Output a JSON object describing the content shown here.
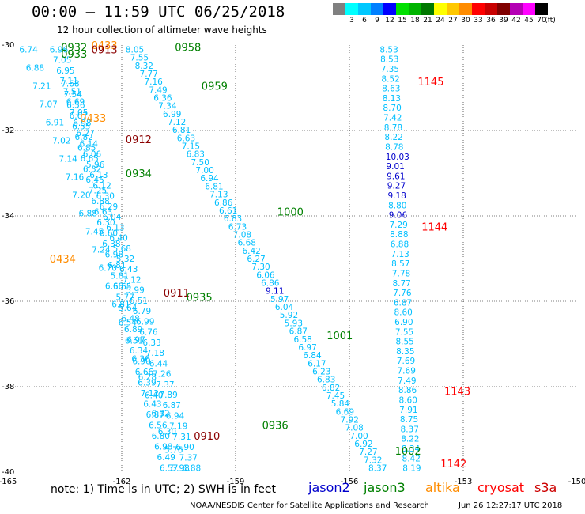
{
  "header": {
    "title": "00:00 – 11:59 UTC 06/25/2018",
    "subtitle": "12 hour collection of altimeter wave heights"
  },
  "scale": {
    "unit_label": "(ft)",
    "bins": [
      {
        "label": "",
        "color": "#808080"
      },
      {
        "label": "3",
        "color": "#00ffff"
      },
      {
        "label": "6",
        "color": "#00c8ff"
      },
      {
        "label": "9",
        "color": "#0080ff"
      },
      {
        "label": "12",
        "color": "#0000ff"
      },
      {
        "label": "15",
        "color": "#00e000"
      },
      {
        "label": "18",
        "color": "#00b400"
      },
      {
        "label": "21",
        "color": "#007800"
      },
      {
        "label": "24",
        "color": "#ffff00"
      },
      {
        "label": "27",
        "color": "#ffc800"
      },
      {
        "label": "30",
        "color": "#ff8c00"
      },
      {
        "label": "33",
        "color": "#ff0000"
      },
      {
        "label": "36",
        "color": "#c80000"
      },
      {
        "label": "39",
        "color": "#800000"
      },
      {
        "label": "42",
        "color": "#b400b4"
      },
      {
        "label": "45",
        "color": "#ff00ff"
      },
      {
        "label": "70",
        "color": "#000000"
      }
    ]
  },
  "footer": {
    "note": "note:  1) Time is in UTC;  2) SWH is in feet",
    "satellites": [
      {
        "name": "jason2",
        "color": "#0000cc"
      },
      {
        "name": "jason3",
        "color": "#008000"
      },
      {
        "name": "altika",
        "color": "#ff8c00"
      },
      {
        "name": "cryosat",
        "color": "#ff0000"
      },
      {
        "name": "s3a",
        "color": "#cc0000"
      }
    ],
    "credit": "NOAA/NESDIS Center for Satellite Applications and Research",
    "timestamp": "Jun 26 12:27:17 UTC 2018"
  },
  "chart_data": {
    "type": "scatter",
    "xlim": [
      -165,
      -150
    ],
    "ylim": [
      -40,
      -30
    ],
    "x_ticks": [
      "-165",
      "-162",
      "-159",
      "-156",
      "-153",
      "-150"
    ],
    "y_ticks": [
      "-30",
      "-32",
      "-34",
      "-36",
      "-38",
      "-40"
    ],
    "grid": true,
    "colors": {
      "cyan": "#00bfff",
      "blue": "#0000cc",
      "green": "#008000",
      "orange": "#ff8c00",
      "red": "#ff0000",
      "darkred": "#8b0000"
    },
    "tracks": [
      {
        "name": "track-a",
        "color": "cyan",
        "lon_start": -164.7,
        "lat_start": -30.1,
        "lon_end": -160.7,
        "lat_end": -39.9,
        "values": [
          "6.74",
          "6.88",
          "7.21",
          "7.07",
          "6.91",
          "7.02",
          "7.14",
          "7.16",
          "7.20",
          "6.88",
          "7.45",
          "7.24",
          "6.70",
          "6.68",
          "6.81",
          "6.54",
          "6.51",
          "6.36",
          "6.28",
          "6.40",
          "6.32",
          "6.30",
          "5.76",
          "5.98"
        ]
      },
      {
        "name": "track-b",
        "color": "cyan",
        "lon_start": -163.9,
        "lat_start": -30.1,
        "lon_end": -160.4,
        "lat_end": -39.9,
        "values": [
          "6.96",
          "7.05",
          "6.95",
          "7.11",
          "7.51",
          "6.69",
          "7.05",
          "6.98",
          "6.27",
          "6.14",
          "6.06",
          "5.96",
          "6.13",
          "6.12",
          "6.30",
          "6.29",
          "6.04",
          "6.13",
          "6.40",
          "5.68",
          "5.32",
          "6.43",
          "7.12",
          "5.99",
          "6.51",
          "6.79",
          "6.99",
          "6.76",
          "6.33",
          "7.18",
          "6.44",
          "7.26",
          "7.37",
          "7.89",
          "6.87",
          "6.94",
          "7.19",
          "7.31",
          "6.90",
          "7.37",
          "6.88"
        ]
      },
      {
        "name": "track-c",
        "color": "cyan",
        "lon_start": -163.6,
        "lat_start": -30.9,
        "lon_end": -161.0,
        "lat_end": -39.9,
        "values": [
          "7.68",
          "7.54",
          "6.56",
          "6.67",
          "6.55",
          "6.82",
          "6.85",
          "6.65",
          "6.32",
          "6.45",
          "7.25",
          "6.88",
          "6.63",
          "6.30",
          "6.60",
          "6.38",
          "6.98",
          "6.81",
          "5.81",
          "5.65",
          "5.77",
          "5.64",
          "6.48",
          "6.89",
          "6.97",
          "6.34",
          "6.90",
          "6.66",
          "6.39",
          "7.12",
          "6.43",
          "6.87",
          "6.56",
          "6.80",
          "6.98",
          "6.49",
          "6.57"
        ]
      },
      {
        "name": "track-d",
        "color": "cyan",
        "lon_start": -161.9,
        "lat_start": -30.1,
        "lon_end": -155.5,
        "lat_end": -39.9,
        "values": [
          "8.05",
          "7.55",
          "8.32",
          "7.77",
          "7.16",
          "7.49",
          "6.36",
          "7.34",
          "6.99",
          "7.12",
          "6.81",
          "6.63",
          "7.15",
          "6.83",
          "7.50",
          "7.00",
          "6.94",
          "6.81",
          "7.13",
          "6.86",
          "6.61",
          "6.83",
          "6.73",
          "7.08",
          "6.68",
          "6.42",
          "6.27",
          "7.30",
          "6.06",
          "6.86",
          "9.11",
          "5.97",
          "6.04",
          "5.92",
          "5.93",
          "6.87",
          "6.58",
          "6.97",
          "6.84",
          "6.17",
          "6.23",
          "6.83",
          "6.82",
          "7.45",
          "5.84",
          "6.69",
          "7.92",
          "7.08",
          "7.00",
          "6.92",
          "7.27",
          "7.32",
          "8.37"
        ]
      },
      {
        "name": "track-e",
        "color": "cyan",
        "lon_start": -155.2,
        "lat_start": -30.1,
        "lon_end": -154.6,
        "lat_end": -39.9,
        "values": [
          "8.53",
          "8.53",
          "7.35",
          "8.52",
          "8.63",
          "8.13",
          "8.70",
          "7.42",
          "8.78",
          "8.22",
          "8.78",
          "10.03",
          "9.01",
          "9.61",
          "9.27",
          "9.18",
          "8.80",
          "9.06",
          "7.29",
          "8.88",
          "6.88",
          "7.13",
          "8.57",
          "7.78",
          "8.77",
          "7.76",
          "6.87",
          "8.60",
          "6.90",
          "7.55",
          "8.55",
          "8.35",
          "7.69",
          "7.69",
          "7.49",
          "8.86",
          "8.60",
          "7.91",
          "8.75",
          "8.37",
          "8.22",
          "8.34",
          "8.42",
          "8.19"
        ]
      }
    ],
    "blue_values": [
      "9.11",
      "10.03",
      "9.01",
      "9.61",
      "9.27",
      "9.18",
      "9.06"
    ],
    "time_labels": [
      {
        "text": "0932",
        "lon": -163.6,
        "lat": -30.05,
        "color": "green"
      },
      {
        "text": "0933",
        "lon": -163.6,
        "lat": -30.2,
        "color": "green"
      },
      {
        "text": "0433",
        "lon": -162.8,
        "lat": -30.0,
        "color": "orange"
      },
      {
        "text": "0913",
        "lon": -162.8,
        "lat": -30.1,
        "color": "darkred"
      },
      {
        "text": "0958",
        "lon": -160.6,
        "lat": -30.05,
        "color": "green"
      },
      {
        "text": "0959",
        "lon": -159.9,
        "lat": -30.95,
        "color": "green"
      },
      {
        "text": "1145",
        "lon": -154.2,
        "lat": -30.85,
        "color": "red"
      },
      {
        "text": "0433",
        "lon": -163.1,
        "lat": -31.7,
        "color": "orange"
      },
      {
        "text": "0912",
        "lon": -161.9,
        "lat": -32.2,
        "color": "darkred"
      },
      {
        "text": "0934",
        "lon": -161.9,
        "lat": -33.0,
        "color": "green"
      },
      {
        "text": "1000",
        "lon": -157.9,
        "lat": -33.9,
        "color": "green"
      },
      {
        "text": "1144",
        "lon": -154.1,
        "lat": -34.25,
        "color": "red"
      },
      {
        "text": "0434",
        "lon": -163.9,
        "lat": -35.0,
        "color": "orange"
      },
      {
        "text": "0911",
        "lon": -160.9,
        "lat": -35.8,
        "color": "darkred"
      },
      {
        "text": "0935",
        "lon": -160.3,
        "lat": -35.9,
        "color": "green"
      },
      {
        "text": "1001",
        "lon": -156.6,
        "lat": -36.8,
        "color": "green"
      },
      {
        "text": "1143",
        "lon": -153.5,
        "lat": -38.1,
        "color": "red"
      },
      {
        "text": "0936",
        "lon": -158.3,
        "lat": -38.9,
        "color": "green"
      },
      {
        "text": "0910",
        "lon": -160.1,
        "lat": -39.15,
        "color": "darkred"
      },
      {
        "text": "1002",
        "lon": -154.8,
        "lat": -39.5,
        "color": "green"
      },
      {
        "text": "1142",
        "lon": -153.6,
        "lat": -39.8,
        "color": "red"
      }
    ]
  }
}
